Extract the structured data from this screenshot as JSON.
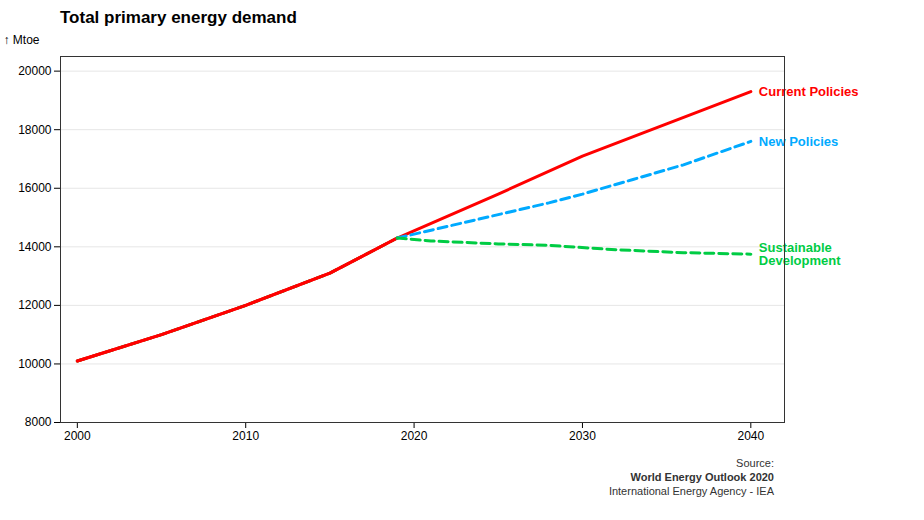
{
  "chart_data": {
    "type": "line",
    "title": "Total primary energy demand",
    "ylabel": "Mtoe",
    "xlim": [
      1999,
      2042
    ],
    "ylim": [
      8000,
      20500
    ],
    "xticks": [
      2000,
      2010,
      2020,
      2030,
      2040
    ],
    "yticks": [
      8000,
      10000,
      12000,
      14000,
      16000,
      18000,
      20000
    ],
    "grid": "y",
    "series": [
      {
        "color": "#00cc44",
        "line_style": "dashed",
        "x": [
          2000,
          2005,
          2010,
          2015,
          2019
        ],
        "values": [
          10100,
          11000,
          12000,
          13100,
          14300
        ]
      },
      {
        "color": "#ff0000",
        "line_style": "solid",
        "x": [
          2000,
          2005,
          2010,
          2015,
          2019
        ],
        "values": [
          10100,
          11000,
          12000,
          13100,
          14300
        ]
      },
      {
        "name": "Current Policies",
        "color": "#ff0000",
        "line_style": "solid",
        "x": [
          2000,
          2005,
          2010,
          2015,
          2019,
          2025,
          2030,
          2035,
          2040
        ],
        "values": [
          10100,
          11000,
          12000,
          13100,
          14300,
          15800,
          17100,
          18200,
          19300
        ]
      },
      {
        "name": "New Policies",
        "color": "#00aaff",
        "line_style": "dashed",
        "x": [
          2019,
          2022,
          2025,
          2028,
          2030,
          2033,
          2036,
          2040
        ],
        "values": [
          14300,
          14700,
          15100,
          15500,
          15800,
          16300,
          16800,
          17600
        ]
      },
      {
        "name": "Sustainable\nDevelopment",
        "color": "#00cc44",
        "line_style": "dashed",
        "x": [
          2019,
          2021,
          2023,
          2025,
          2028,
          2032,
          2036,
          2040
        ],
        "values": [
          14300,
          14200,
          14150,
          14100,
          14050,
          13900,
          13800,
          13750
        ]
      }
    ],
    "annotations": [
      "Source:",
      "World Energy Outlook 2020",
      "International Energy Agency - IEA"
    ]
  }
}
